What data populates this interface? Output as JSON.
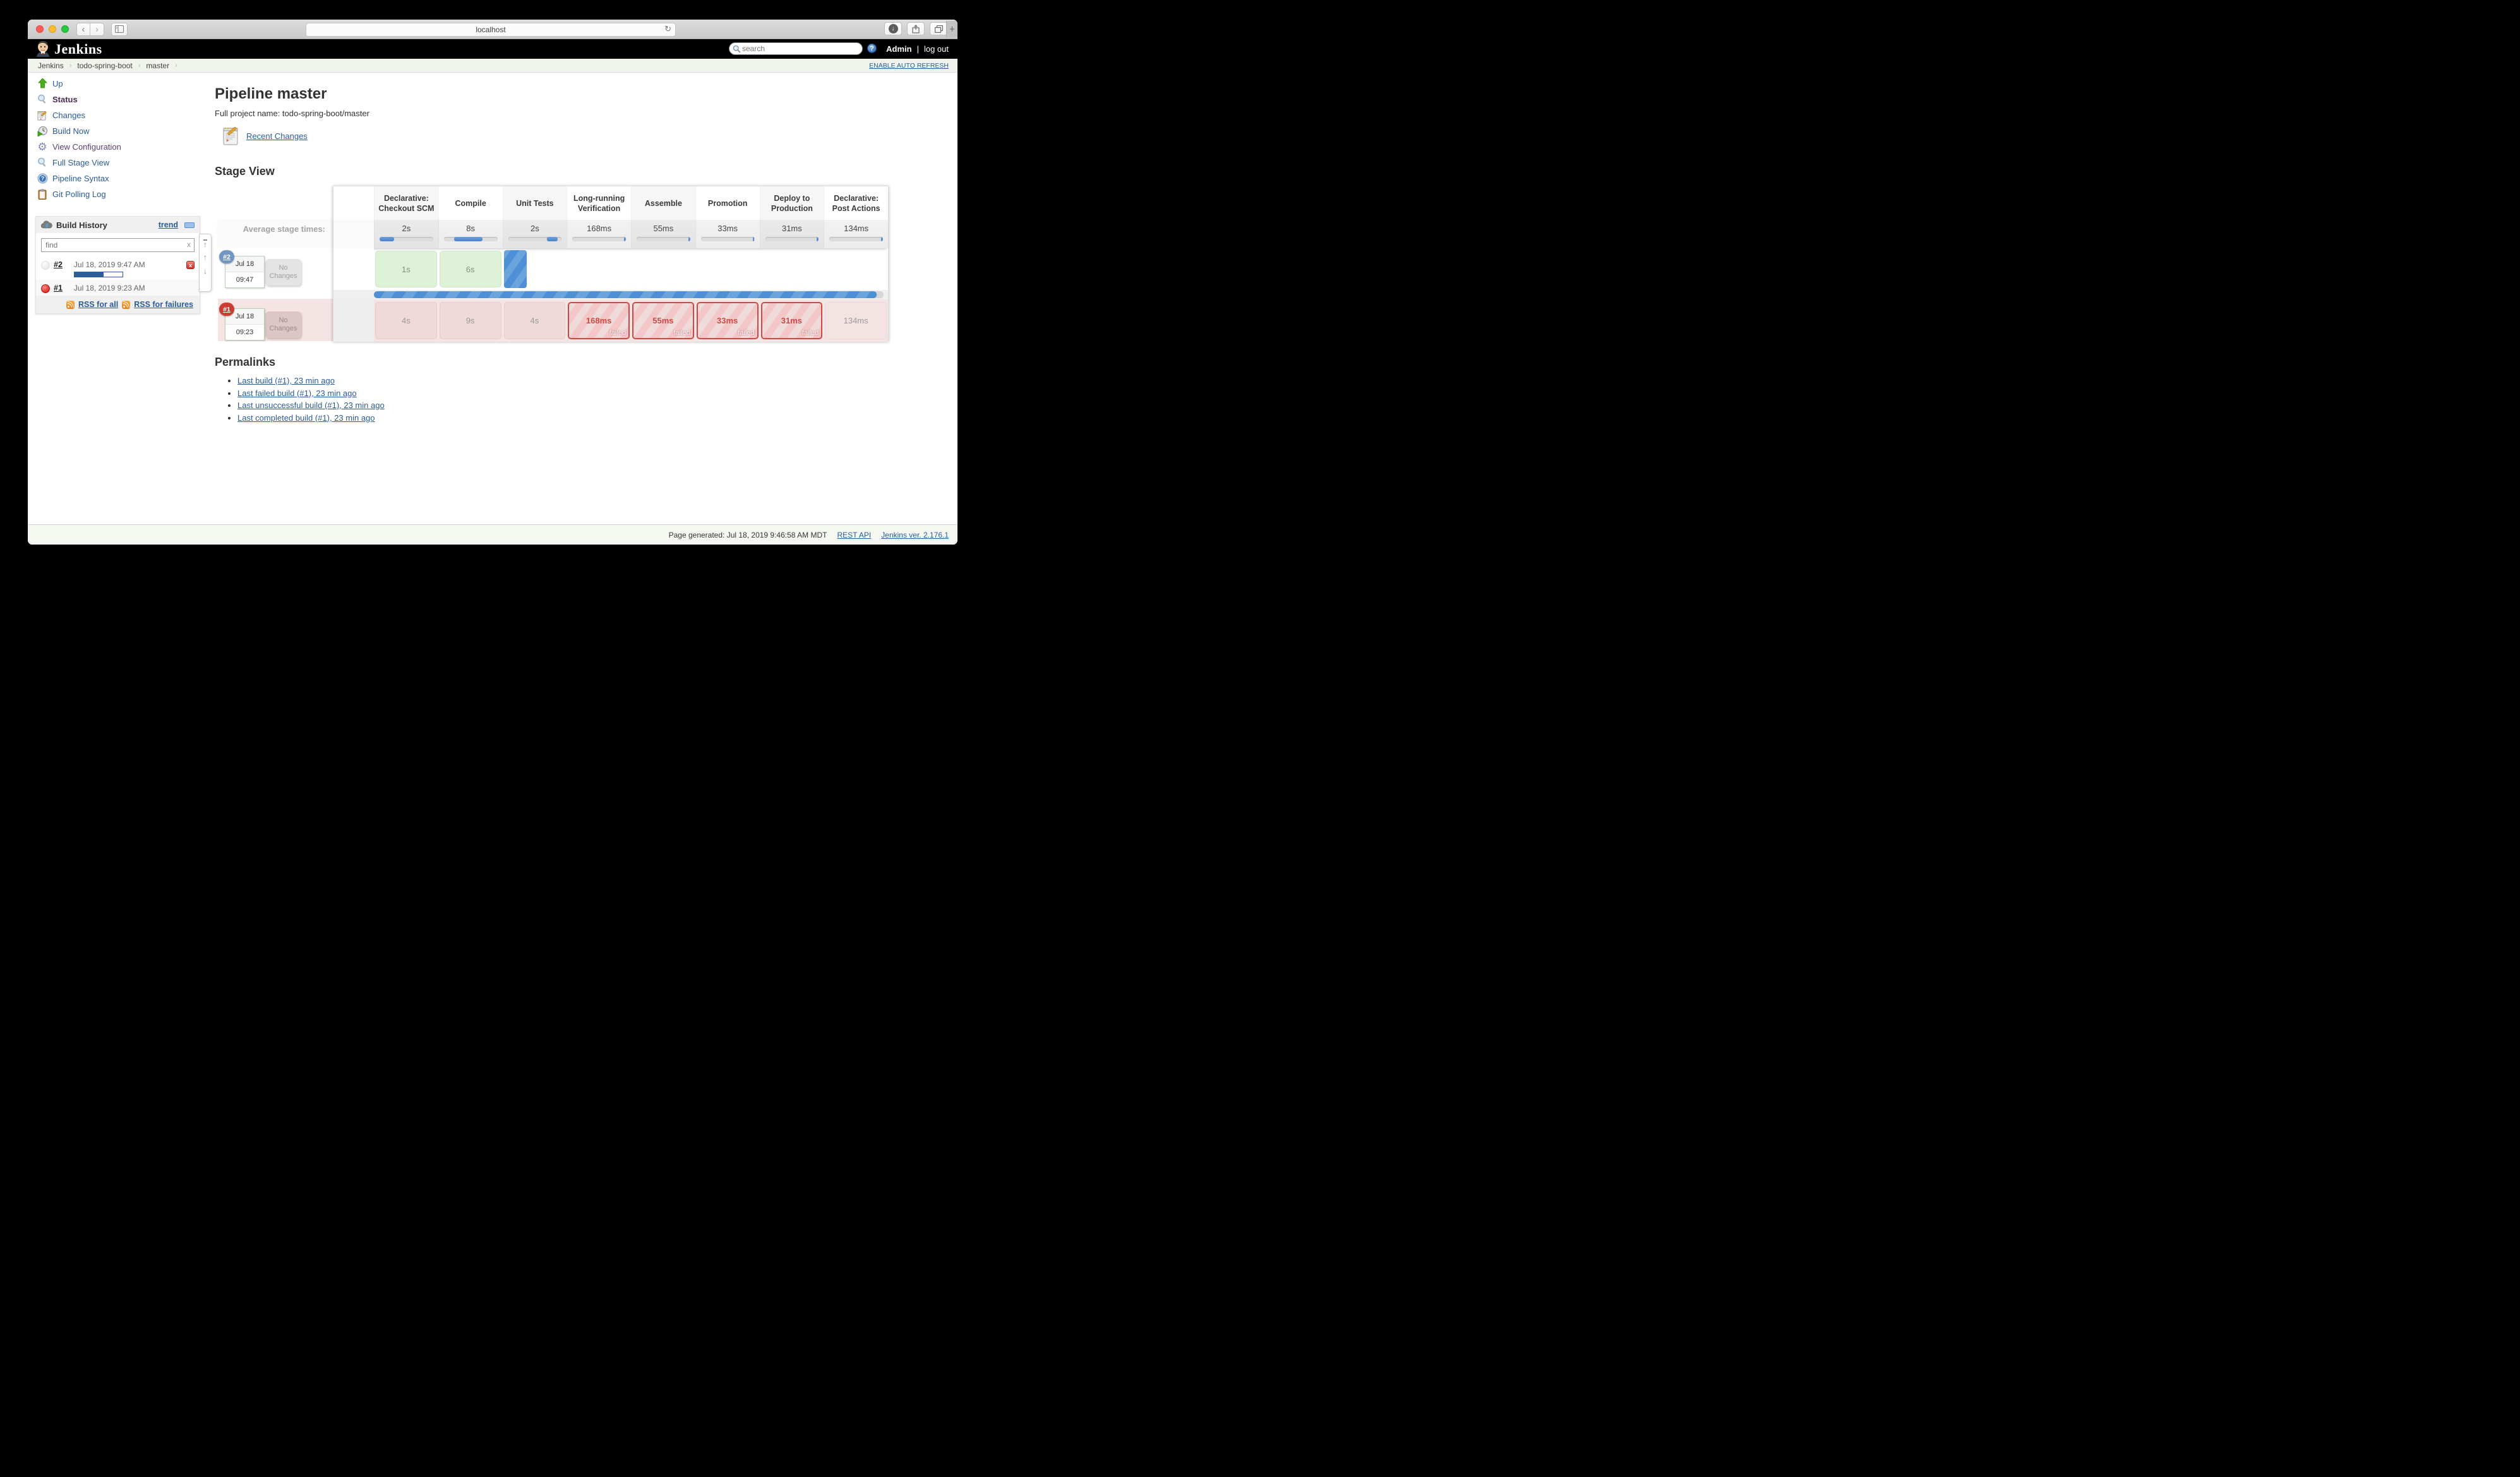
{
  "browser": {
    "url": "localhost",
    "reload_glyph": "↻",
    "back_glyph": "‹",
    "forward_glyph": "›",
    "plus_glyph": "+",
    "download_glyph": "↓"
  },
  "jenkins_header": {
    "logo_text": "Jenkins",
    "search_placeholder": "search",
    "help_glyph": "?",
    "user": "Admin",
    "divider": "|",
    "logout": "log out"
  },
  "breadcrumb": {
    "items": [
      "Jenkins",
      "todo-spring-boot",
      "master"
    ],
    "separator": "›",
    "auto_refresh": "ENABLE AUTO REFRESH"
  },
  "sidebar": {
    "items": [
      {
        "label": "Up",
        "icon": "up-arrow"
      },
      {
        "label": "Status",
        "icon": "magnifier"
      },
      {
        "label": "Changes",
        "icon": "notepad"
      },
      {
        "label": "Build Now",
        "icon": "clock-play"
      },
      {
        "label": "View Configuration",
        "icon": "gear"
      },
      {
        "label": "Full Stage View",
        "icon": "magnifier"
      },
      {
        "label": "Pipeline Syntax",
        "icon": "question-badge"
      },
      {
        "label": "Git Polling Log",
        "icon": "clipboard"
      }
    ]
  },
  "build_history": {
    "title": "Build History",
    "trend_label": "trend",
    "find_placeholder": "find",
    "clear_label": "x",
    "builds": [
      {
        "number": "#2",
        "timestamp": "Jul 18, 2019 9:47 AM",
        "status": "in-progress",
        "progress_pct": 60
      },
      {
        "number": "#1",
        "timestamp": "Jul 18, 2019 9:23 AM",
        "status": "failed"
      }
    ],
    "rss_all": "RSS for all",
    "rss_failures": "RSS for failures",
    "scroll_up_glyph": "↑",
    "scroll_down_glyph": "↓"
  },
  "main": {
    "page_title": "Pipeline master",
    "full_project": "Full project name: todo-spring-boot/master",
    "recent_changes": "Recent Changes",
    "stage_view_title": "Stage View",
    "permalinks_title": "Permalinks",
    "permalinks": [
      "Last build (#1), 23 min ago",
      "Last failed build (#1), 23 min ago",
      "Last unsuccessful build (#1), 23 min ago",
      "Last completed build (#1), 23 min ago"
    ]
  },
  "stage_view": {
    "avg_label": "Average stage times:",
    "running_width_pct": 36,
    "overall_progress_pct": 98.6,
    "failed_label": "failed",
    "stages": [
      {
        "name": "Declarative: Checkout SCM",
        "avg": "2s",
        "seg_start": 0,
        "seg_w": 27
      },
      {
        "name": "Compile",
        "avg": "8s",
        "seg_start": 19,
        "seg_w": 53
      },
      {
        "name": "Unit Tests",
        "avg": "2s",
        "seg_start": 72,
        "seg_w": 21
      },
      {
        "name": "Long-running Verification",
        "avg": "168ms",
        "seg_start": 96,
        "seg_w": 4
      },
      {
        "name": "Assemble",
        "avg": "55ms",
        "seg_start": 97,
        "seg_w": 3
      },
      {
        "name": "Promotion",
        "avg": "33ms",
        "seg_start": 97,
        "seg_w": 3
      },
      {
        "name": "Deploy to Production",
        "avg": "31ms",
        "seg_start": 96,
        "seg_w": 4
      },
      {
        "name": "Declarative: Post Actions",
        "avg": "134ms",
        "seg_start": 97,
        "seg_w": 3
      }
    ],
    "builds": [
      {
        "id": "#2",
        "date": "Jul 18",
        "time": "09:47",
        "changes": "No Changes",
        "cells": [
          {
            "time": "1s",
            "type": "success"
          },
          {
            "time": "6s",
            "type": "success"
          },
          {
            "time": "",
            "type": "running"
          },
          {
            "time": "",
            "type": "empty"
          },
          {
            "time": "",
            "type": "empty"
          },
          {
            "time": "",
            "type": "empty"
          },
          {
            "time": "",
            "type": "empty"
          },
          {
            "time": "",
            "type": "empty"
          }
        ]
      },
      {
        "id": "#1",
        "date": "Jul 18",
        "time": "09:23",
        "changes": "No Changes",
        "cells": [
          {
            "time": "4s",
            "type": "soft"
          },
          {
            "time": "9s",
            "type": "soft"
          },
          {
            "time": "4s",
            "type": "soft"
          },
          {
            "time": "168ms",
            "type": "failed"
          },
          {
            "time": "55ms",
            "type": "failed"
          },
          {
            "time": "33ms",
            "type": "failed"
          },
          {
            "time": "31ms",
            "type": "failed"
          },
          {
            "time": "134ms",
            "type": "plain"
          }
        ]
      }
    ]
  },
  "footer": {
    "generated": "Page generated: Jul 18, 2019 9:46:58 AM MDT",
    "rest_api": "REST API",
    "version": "Jenkins ver. 2.176.1"
  }
}
